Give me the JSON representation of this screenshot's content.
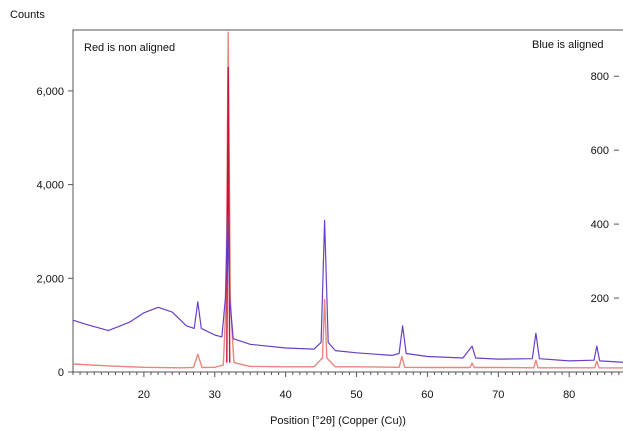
{
  "chart_data": {
    "type": "line",
    "title": "",
    "xlabel": "Position [°2θ] (Copper (Cu))",
    "ylabel": "Counts",
    "xlim": [
      10,
      89
    ],
    "ylim": [
      0,
      7300
    ],
    "x_ticks": [
      20,
      30,
      40,
      50,
      60,
      70,
      80
    ],
    "y_ticks": [
      {
        "value": 0,
        "label": "0"
      },
      {
        "value": 2000,
        "label": "2,000"
      },
      {
        "value": 4000,
        "label": "4,000"
      },
      {
        "value": 6000,
        "label": "6,000"
      }
    ],
    "y2lim": [
      0,
      925
    ],
    "y2_ticks": [
      {
        "value": 200,
        "label": "200"
      },
      {
        "value": 400,
        "label": "400"
      },
      {
        "value": 600,
        "label": "600"
      },
      {
        "value": 800,
        "label": "800"
      }
    ],
    "grid": false,
    "annotations": {
      "left": "Red is non aligned",
      "right": "Blue is aligned"
    },
    "series": [
      {
        "key": "non_aligned",
        "axis": "left",
        "color": "#e8867c",
        "points": [
          [
            10,
            170
          ],
          [
            15,
            130
          ],
          [
            20,
            100
          ],
          [
            25,
            90
          ],
          [
            27,
            95
          ],
          [
            27.6,
            380
          ],
          [
            28.2,
            95
          ],
          [
            30,
            100
          ],
          [
            31.2,
            150
          ],
          [
            31.6,
            1500
          ],
          [
            31.9,
            7250
          ],
          [
            32.2,
            1500
          ],
          [
            32.7,
            200
          ],
          [
            35,
            120
          ],
          [
            40,
            110
          ],
          [
            44,
            110
          ],
          [
            45.2,
            300
          ],
          [
            45.5,
            1550
          ],
          [
            45.8,
            300
          ],
          [
            47,
            110
          ],
          [
            50,
            110
          ],
          [
            56,
            100
          ],
          [
            56.4,
            330
          ],
          [
            56.8,
            100
          ],
          [
            60,
            95
          ],
          [
            66,
            95
          ],
          [
            66.3,
            190
          ],
          [
            66.6,
            95
          ],
          [
            70,
            95
          ],
          [
            75,
            90
          ],
          [
            75.3,
            250
          ],
          [
            75.6,
            90
          ],
          [
            80,
            90
          ],
          [
            83.6,
            90
          ],
          [
            83.9,
            230
          ],
          [
            84.2,
            90
          ],
          [
            89,
            85
          ]
        ]
      },
      {
        "key": "non_aligned_peak",
        "axis": "left",
        "color": "#c8143c",
        "points": [
          [
            31.7,
            200
          ],
          [
            31.9,
            6500
          ],
          [
            32.1,
            200
          ]
        ]
      },
      {
        "key": "aligned",
        "axis": "right",
        "color": "#6a3fc8",
        "points": [
          [
            10,
            140
          ],
          [
            12,
            128
          ],
          [
            15,
            112
          ],
          [
            18,
            135
          ],
          [
            20,
            160
          ],
          [
            22,
            175
          ],
          [
            24,
            162
          ],
          [
            26,
            125
          ],
          [
            27.1,
            118
          ],
          [
            27.6,
            190
          ],
          [
            28.1,
            118
          ],
          [
            30,
            100
          ],
          [
            31,
            95
          ],
          [
            31.5,
            200
          ],
          [
            31.8,
            420
          ],
          [
            32.1,
            200
          ],
          [
            32.6,
            90
          ],
          [
            35,
            75
          ],
          [
            40,
            65
          ],
          [
            44,
            62
          ],
          [
            45,
            80
          ],
          [
            45.5,
            410
          ],
          [
            46,
            80
          ],
          [
            47,
            58
          ],
          [
            50,
            52
          ],
          [
            55,
            45
          ],
          [
            56,
            50
          ],
          [
            56.5,
            125
          ],
          [
            57,
            50
          ],
          [
            60,
            42
          ],
          [
            65,
            38
          ],
          [
            66.3,
            70
          ],
          [
            66.8,
            38
          ],
          [
            70,
            35
          ],
          [
            74.8,
            36
          ],
          [
            75.3,
            105
          ],
          [
            75.8,
            36
          ],
          [
            80,
            30
          ],
          [
            83.5,
            32
          ],
          [
            83.9,
            70
          ],
          [
            84.3,
            30
          ],
          [
            89,
            25
          ]
        ]
      }
    ]
  }
}
